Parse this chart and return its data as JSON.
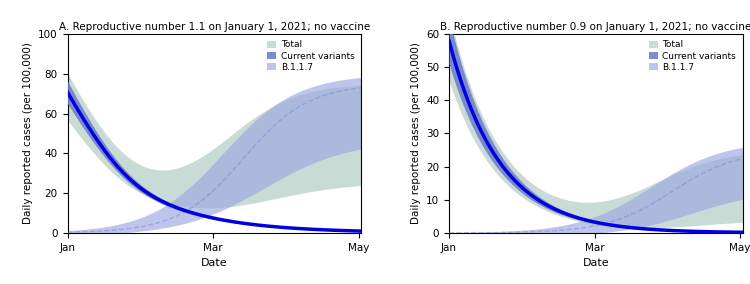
{
  "title_A": "A. Reproductive number 1.1 on January 1, 2021; no vaccine",
  "title_B": "B. Reproductive number 0.9 on January 1, 2021; no vaccine",
  "xlabel": "Date",
  "ylabel": "Daily reported cases (per 100,000)",
  "xtick_labels": [
    "Jan",
    "Mar",
    "May"
  ],
  "ylim_A": [
    0,
    100
  ],
  "ylim_B": [
    0,
    60
  ],
  "yticks_A": [
    0,
    20,
    40,
    60,
    80,
    100
  ],
  "yticks_B": [
    0,
    10,
    20,
    30,
    40,
    50,
    60
  ],
  "n_points": 200,
  "color_total_fill": "#b8cfc8",
  "color_cv_fill": "#7080c8",
  "color_cv_line": "#0000e0",
  "color_b117_fill": "#9aa8e0",
  "color_b117_line": "#8090d8",
  "legend_labels": [
    "Total",
    "Current variants",
    "B.1.1.7"
  ],
  "bg_color": "#ffffff",
  "panel_bg": "#ffffff"
}
